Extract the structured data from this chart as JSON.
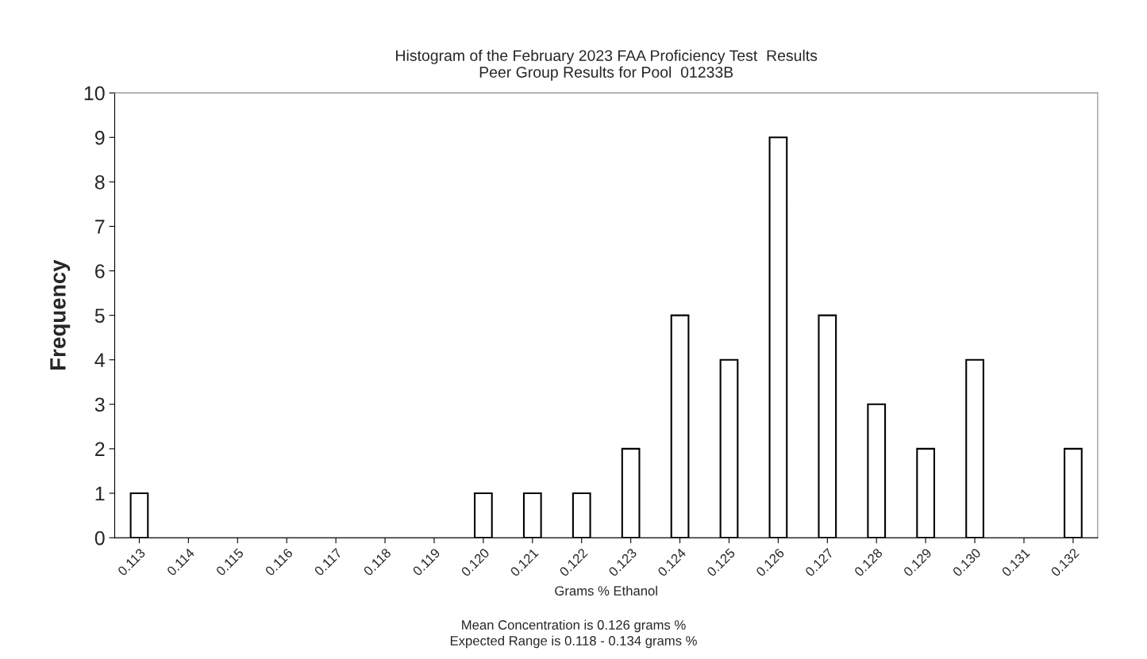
{
  "chart_data": {
    "type": "bar",
    "title": "Histogram of the February 2023 FAA Proficiency Test  Results\nPeer Group Results for Pool  01233B",
    "xlabel": "Grams % Ethanol",
    "ylabel": "Frequency",
    "categories": [
      "0.113",
      "0.114",
      "0.115",
      "0.116",
      "0.117",
      "0.118",
      "0.119",
      "0.120",
      "0.121",
      "0.122",
      "0.123",
      "0.124",
      "0.125",
      "0.126",
      "0.127",
      "0.128",
      "0.129",
      "0.130",
      "0.131",
      "0.132"
    ],
    "values": [
      1,
      0,
      0,
      0,
      0,
      0,
      0,
      1,
      1,
      1,
      2,
      5,
      4,
      9,
      5,
      3,
      2,
      4,
      0,
      2
    ],
    "color": "#ffffff",
    "ylim": [
      0,
      10
    ],
    "yticks": [
      0,
      1,
      2,
      3,
      4,
      5,
      6,
      7,
      8,
      9,
      10
    ],
    "grid": false,
    "legend": false,
    "annotations": [
      "Mean Concentration is 0.126 grams %",
      "Expected Range is 0.118 - 0.134 grams %"
    ]
  }
}
